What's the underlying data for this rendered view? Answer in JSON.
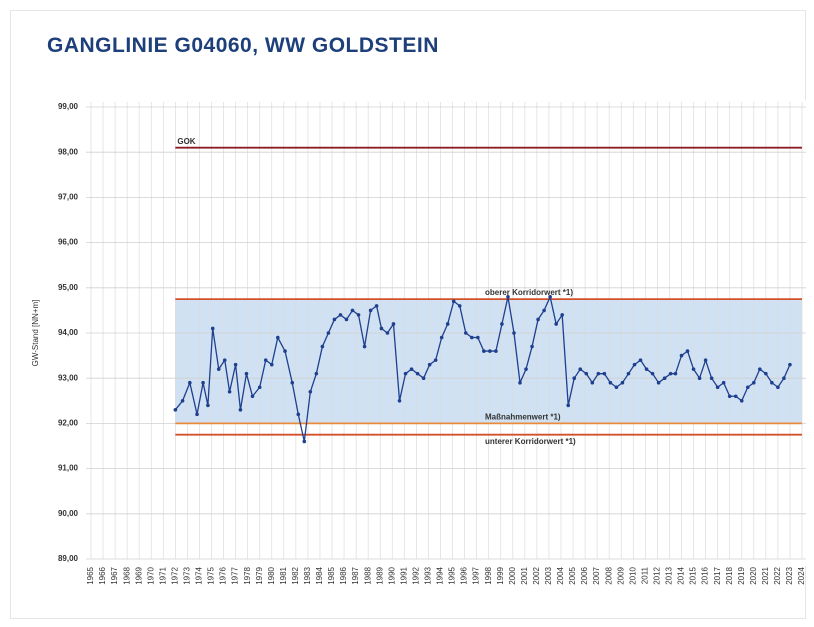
{
  "chart_data": {
    "type": "line",
    "title": "GANGLINIE G04060, WW GOLDSTEIN",
    "y_label": "GW-Stand [NN+m]",
    "xlim": [
      1965,
      2024
    ],
    "xticks": [
      1965,
      1966,
      1967,
      1968,
      1969,
      1970,
      1971,
      1972,
      1973,
      1974,
      1975,
      1976,
      1977,
      1978,
      1979,
      1980,
      1981,
      1982,
      1983,
      1984,
      1985,
      1986,
      1987,
      1988,
      1989,
      1990,
      1991,
      1992,
      1993,
      1994,
      1995,
      1996,
      1997,
      1998,
      1999,
      2000,
      2001,
      2002,
      2003,
      2004,
      2005,
      2006,
      2007,
      2008,
      2009,
      2010,
      2011,
      2012,
      2013,
      2014,
      2015,
      2016,
      2017,
      2018,
      2019,
      2020,
      2021,
      2022,
      2023,
      2024
    ],
    "ylim": [
      89,
      99
    ],
    "yticks": [
      {
        "value": 89,
        "label": "89,00"
      },
      {
        "value": 90,
        "label": "90,00"
      },
      {
        "value": 91,
        "label": "91,00"
      },
      {
        "value": 92,
        "label": "92,00"
      },
      {
        "value": 93,
        "label": "93,00"
      },
      {
        "value": 94,
        "label": "94,00"
      },
      {
        "value": 95,
        "label": "95,00"
      },
      {
        "value": 96,
        "label": "96,00"
      },
      {
        "value": 97,
        "label": "97,00"
      },
      {
        "value": 98,
        "label": "98,00"
      },
      {
        "value": 99,
        "label": "99,00"
      }
    ],
    "grid": true,
    "band": {
      "range": [
        92.0,
        94.75
      ],
      "xrange": [
        1972,
        2024
      ],
      "color": "#cfe1f2"
    },
    "reference_lines": [
      {
        "label": "GOK",
        "value": 98.1,
        "color": "#8b1f24",
        "xrange": [
          1972,
          2024
        ]
      },
      {
        "label": "oberer Korridorwert *1)",
        "value": 94.75,
        "color": "#d4502a",
        "xrange": [
          1972,
          2024
        ]
      },
      {
        "label": "Maßnahmenwert *1)",
        "value": 92.0,
        "color": "#e98a3c",
        "xrange": [
          1972,
          2024
        ]
      },
      {
        "label": "unterer Korridorwert *1)",
        "value": 91.75,
        "color": "#d4502a",
        "xrange": [
          1972,
          2024
        ]
      }
    ],
    "series": [
      {
        "color": "#1f3f8f",
        "x": [
          1972.0,
          1972.6,
          1973.2,
          1973.8,
          1974.3,
          1974.7,
          1975.1,
          1975.6,
          1976.1,
          1976.5,
          1977.0,
          1977.4,
          1977.9,
          1978.4,
          1979.0,
          1979.5,
          1980.0,
          1980.5,
          1981.1,
          1981.7,
          1982.2,
          1982.7,
          1983.2,
          1983.7,
          1984.2,
          1984.7,
          1985.2,
          1985.7,
          1986.2,
          1986.7,
          1987.2,
          1987.7,
          1988.2,
          1988.7,
          1989.1,
          1989.6,
          1990.1,
          1990.6,
          1991.1,
          1991.6,
          1992.1,
          1992.6,
          1993.1,
          1993.6,
          1994.1,
          1994.6,
          1995.1,
          1995.6,
          1996.1,
          1996.6,
          1997.1,
          1997.6,
          1998.1,
          1998.6,
          1999.1,
          1999.6,
          2000.1,
          2000.6,
          2001.1,
          2001.6,
          2002.1,
          2002.6,
          2003.1,
          2003.6,
          2004.1,
          2004.6,
          2005.1,
          2005.6,
          2006.1,
          2006.6,
          2007.1,
          2007.6,
          2008.1,
          2008.6,
          2009.1,
          2009.6,
          2010.1,
          2010.6,
          2011.1,
          2011.6,
          2012.1,
          2012.6,
          2013.1,
          2013.5,
          2014.0,
          2014.5,
          2015.0,
          2015.5,
          2016.0,
          2016.5,
          2017.0,
          2017.5,
          2018.0,
          2018.5,
          2019.0,
          2019.5,
          2020.0,
          2020.5,
          2021.0,
          2021.5,
          2022.0,
          2022.5,
          2023.0
        ],
        "values": [
          92.3,
          92.5,
          92.9,
          92.2,
          92.9,
          92.4,
          94.1,
          93.2,
          93.4,
          92.7,
          93.3,
          92.3,
          93.1,
          92.6,
          92.8,
          93.4,
          93.3,
          93.9,
          93.6,
          92.9,
          92.2,
          91.6,
          92.7,
          93.1,
          93.7,
          94.0,
          94.3,
          94.4,
          94.3,
          94.5,
          94.4,
          93.7,
          94.5,
          94.6,
          94.1,
          94.0,
          94.2,
          92.5,
          93.1,
          93.2,
          93.1,
          93.0,
          93.3,
          93.4,
          93.9,
          94.2,
          94.7,
          94.6,
          94.0,
          93.9,
          93.9,
          93.6,
          93.6,
          93.6,
          94.2,
          94.8,
          94.0,
          92.9,
          93.2,
          93.7,
          94.3,
          94.5,
          94.8,
          94.2,
          94.4,
          92.4,
          93.0,
          93.2,
          93.1,
          92.9,
          93.1,
          93.1,
          92.9,
          92.8,
          92.9,
          93.1,
          93.3,
          93.4,
          93.2,
          93.1,
          92.9,
          93.0,
          93.1,
          93.1,
          93.5,
          93.6,
          93.2,
          93.0,
          93.4,
          93.0,
          92.8,
          92.9,
          92.6,
          92.6,
          92.5,
          92.8,
          92.9,
          93.2,
          93.1,
          92.9,
          92.8,
          93.0,
          93.3
        ]
      }
    ]
  }
}
